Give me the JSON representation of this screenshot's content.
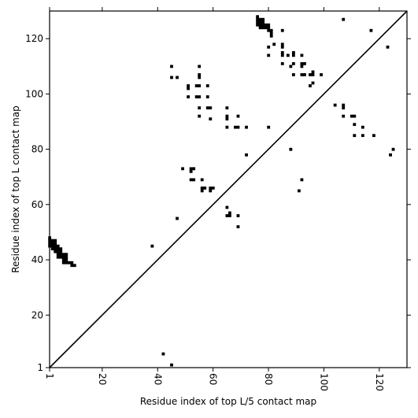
{
  "chart_data": {
    "type": "scatter",
    "marker": "square",
    "xlabel": "Residue index of top L/5 contact map",
    "ylabel": "Residue index of top L contact map",
    "xlim": [
      1,
      130
    ],
    "ylim": [
      1,
      130
    ],
    "xticks": [
      1,
      20,
      40,
      60,
      80,
      100,
      120
    ],
    "yticks": [
      1,
      20,
      40,
      60,
      80,
      100,
      120
    ],
    "x_tick_labels": [
      "1",
      "20",
      "40",
      "60",
      "80",
      "100",
      "120"
    ],
    "y_tick_labels": [
      "1",
      "20",
      "40",
      "60",
      "80",
      "100",
      "120"
    ],
    "x_tick_rotation_deg": -90,
    "diagonal": [
      [
        1,
        1
      ],
      [
        130,
        130
      ]
    ],
    "colors": {
      "marker": "#000000",
      "axes": "#000000",
      "background": "#ffffff"
    },
    "series": [
      {
        "points": [
          [
            1,
            48
          ],
          [
            1,
            47
          ],
          [
            1,
            46
          ],
          [
            1,
            45
          ],
          [
            2,
            47
          ],
          [
            2,
            46
          ],
          [
            2,
            45
          ],
          [
            2,
            44
          ],
          [
            3,
            47
          ],
          [
            3,
            46
          ],
          [
            3,
            45
          ],
          [
            3,
            44
          ],
          [
            3,
            43
          ],
          [
            4,
            45
          ],
          [
            4,
            44
          ],
          [
            4,
            43
          ],
          [
            4,
            42
          ],
          [
            4,
            41
          ],
          [
            5,
            44
          ],
          [
            5,
            43
          ],
          [
            5,
            42
          ],
          [
            5,
            41
          ],
          [
            6,
            42
          ],
          [
            6,
            41
          ],
          [
            6,
            40
          ],
          [
            6,
            39
          ],
          [
            7,
            42
          ],
          [
            7,
            41
          ],
          [
            7,
            40
          ],
          [
            7,
            39
          ],
          [
            8,
            39
          ],
          [
            9,
            39
          ],
          [
            9,
            38
          ],
          [
            10,
            38
          ],
          [
            38,
            45
          ],
          [
            42,
            6
          ],
          [
            45,
            2
          ],
          [
            45,
            110
          ],
          [
            45,
            106
          ],
          [
            47,
            106
          ],
          [
            47,
            55
          ],
          [
            49,
            73
          ],
          [
            51,
            103
          ],
          [
            51,
            102
          ],
          [
            51,
            99
          ],
          [
            52,
            73
          ],
          [
            52,
            72
          ],
          [
            52,
            69
          ],
          [
            53,
            73
          ],
          [
            53,
            69
          ],
          [
            54,
            103
          ],
          [
            54,
            99
          ],
          [
            55,
            110
          ],
          [
            55,
            107
          ],
          [
            55,
            106
          ],
          [
            55,
            103
          ],
          [
            55,
            99
          ],
          [
            55,
            95
          ],
          [
            55,
            92
          ],
          [
            56,
            69
          ],
          [
            56,
            66
          ],
          [
            56,
            65
          ],
          [
            57,
            66
          ],
          [
            58,
            103
          ],
          [
            58,
            99
          ],
          [
            58,
            95
          ],
          [
            59,
            95
          ],
          [
            59,
            91
          ],
          [
            59,
            66
          ],
          [
            59,
            65
          ],
          [
            60,
            66
          ],
          [
            65,
            95
          ],
          [
            65,
            92
          ],
          [
            65,
            91
          ],
          [
            65,
            88
          ],
          [
            65,
            59
          ],
          [
            65,
            56
          ],
          [
            66,
            57
          ],
          [
            66,
            56
          ],
          [
            68,
            88
          ],
          [
            69,
            92
          ],
          [
            69,
            88
          ],
          [
            69,
            56
          ],
          [
            69,
            52
          ],
          [
            72,
            88
          ],
          [
            72,
            78
          ],
          [
            76,
            128
          ],
          [
            76,
            127
          ],
          [
            76,
            126
          ],
          [
            76,
            125
          ],
          [
            77,
            127
          ],
          [
            77,
            126
          ],
          [
            77,
            125
          ],
          [
            77,
            124
          ],
          [
            78,
            127
          ],
          [
            78,
            126
          ],
          [
            78,
            125
          ],
          [
            78,
            124
          ],
          [
            79,
            125
          ],
          [
            79,
            124
          ],
          [
            80,
            125
          ],
          [
            80,
            124
          ],
          [
            80,
            123
          ],
          [
            80,
            117
          ],
          [
            80,
            114
          ],
          [
            80,
            88
          ],
          [
            81,
            123
          ],
          [
            81,
            122
          ],
          [
            81,
            121
          ],
          [
            82,
            118
          ],
          [
            85,
            123
          ],
          [
            85,
            118
          ],
          [
            85,
            117
          ],
          [
            85,
            115
          ],
          [
            85,
            114
          ],
          [
            85,
            111
          ],
          [
            87,
            114
          ],
          [
            88,
            110
          ],
          [
            88,
            80
          ],
          [
            89,
            115
          ],
          [
            89,
            114
          ],
          [
            89,
            111
          ],
          [
            89,
            107
          ],
          [
            91,
            65
          ],
          [
            92,
            114
          ],
          [
            92,
            111
          ],
          [
            92,
            110
          ],
          [
            92,
            107
          ],
          [
            92,
            69
          ],
          [
            93,
            111
          ],
          [
            93,
            107
          ],
          [
            95,
            107
          ],
          [
            95,
            103
          ],
          [
            96,
            108
          ],
          [
            96,
            107
          ],
          [
            96,
            104
          ],
          [
            99,
            107
          ],
          [
            104,
            96
          ],
          [
            107,
            127
          ],
          [
            107,
            96
          ],
          [
            107,
            95
          ],
          [
            107,
            92
          ],
          [
            110,
            92
          ],
          [
            111,
            92
          ],
          [
            111,
            89
          ],
          [
            111,
            85
          ],
          [
            114,
            88
          ],
          [
            114,
            85
          ],
          [
            117,
            123
          ],
          [
            118,
            85
          ],
          [
            123,
            117
          ],
          [
            124,
            78
          ],
          [
            125,
            80
          ]
        ]
      }
    ]
  }
}
